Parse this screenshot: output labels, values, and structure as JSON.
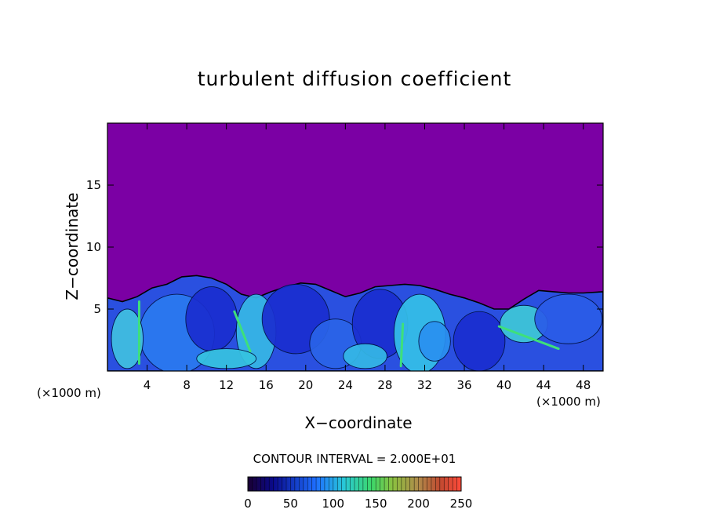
{
  "chart_data": {
    "type": "heatmap",
    "title": "turbulent diffusion coefficient",
    "xlabel": "X−coordinate",
    "ylabel": "Z−coordinate",
    "x_unit_left": "(×1000 m)",
    "x_unit_right": "(×1000 m)",
    "xlim": [
      0,
      50
    ],
    "ylim": [
      0,
      20
    ],
    "x_ticks": [
      4,
      8,
      12,
      16,
      20,
      24,
      28,
      32,
      36,
      40,
      44,
      48
    ],
    "y_ticks": [
      5,
      10,
      15
    ],
    "contour_interval_text": "CONTOUR INTERVAL = 2.000E+01",
    "colorbar": {
      "range": [
        0,
        250
      ],
      "ticks": [
        0,
        50,
        100,
        150,
        200,
        250
      ]
    },
    "background_color": "#7b00a4",
    "boundary_layer_top": [
      [
        0,
        5.9
      ],
      [
        1.5,
        5.6
      ],
      [
        3,
        6.0
      ],
      [
        4.5,
        6.7
      ],
      [
        6,
        7.0
      ],
      [
        7.5,
        7.6
      ],
      [
        9,
        7.7
      ],
      [
        10.5,
        7.5
      ],
      [
        12,
        7.0
      ],
      [
        13.5,
        6.2
      ],
      [
        15,
        5.9
      ],
      [
        16.5,
        6.4
      ],
      [
        18,
        6.8
      ],
      [
        19.5,
        7.1
      ],
      [
        21,
        7.0
      ],
      [
        22.5,
        6.5
      ],
      [
        24,
        6.0
      ],
      [
        25.5,
        6.3
      ],
      [
        27,
        6.8
      ],
      [
        28.5,
        6.9
      ],
      [
        30,
        7.0
      ],
      [
        31.5,
        6.9
      ],
      [
        33,
        6.6
      ],
      [
        34.5,
        6.2
      ],
      [
        36,
        5.9
      ],
      [
        37.5,
        5.5
      ],
      [
        39,
        5.0
      ],
      [
        40.5,
        5.0
      ],
      [
        42,
        5.8
      ],
      [
        43.5,
        6.5
      ],
      [
        45,
        6.4
      ],
      [
        46.5,
        6.3
      ],
      [
        48,
        6.3
      ],
      [
        50,
        6.4
      ]
    ]
  }
}
